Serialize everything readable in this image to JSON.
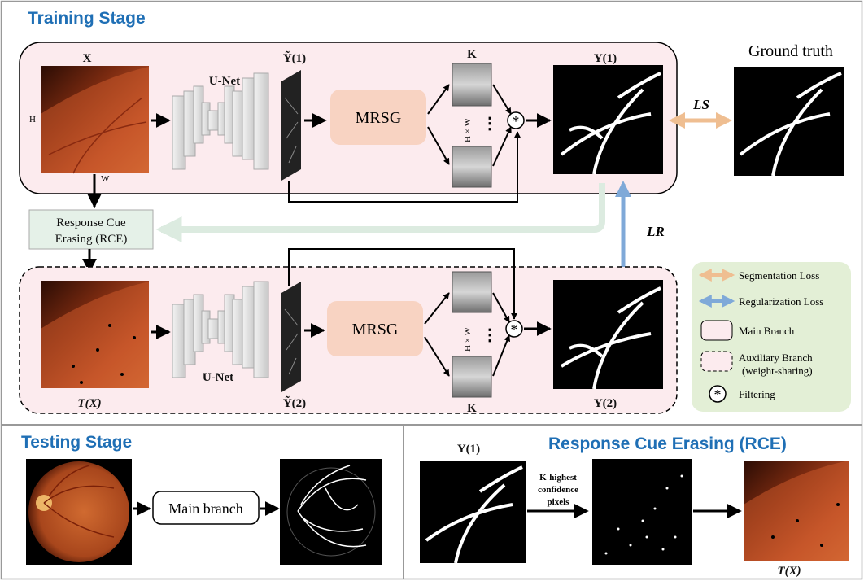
{
  "sections": {
    "training": "Training Stage",
    "testing": "Testing Stage",
    "rce": "Response Cue Erasing (RCE)"
  },
  "main_branch": {
    "input_label": "X",
    "dim_h": "H",
    "dim_w": "W",
    "unet": "U-Net",
    "y_tilde": "Ỹ(1)",
    "mrsg": "MRSG",
    "k": "K",
    "hw": "H × W",
    "dots": "⋮",
    "output": "Y(1)"
  },
  "ground_truth": "Ground truth",
  "loss_s": "LS",
  "loss_r": "LR",
  "rce_box": [
    "Response Cue",
    "Erasing (RCE)"
  ],
  "aux_branch": {
    "input_label": "T(X)",
    "unet": "U-Net",
    "y_tilde": "Ỹ(2)",
    "mrsg": "MRSG",
    "k": "K",
    "hw": "H × W",
    "dots": "⋮",
    "output": "Y(2)"
  },
  "legend": {
    "segmentation_loss": "Segmentation Loss",
    "regularization_loss": "Regularization Loss",
    "main_branch": "Main Branch",
    "aux_branch": [
      "Auxiliary Branch",
      "(weight-sharing)"
    ],
    "filtering": "Filtering"
  },
  "testing": {
    "main_branch": "Main branch"
  },
  "rce_stage": {
    "input": "Y(1)",
    "arrow_text": [
      "K-highest",
      "confidence",
      "pixels"
    ],
    "output": "T(X)"
  },
  "colors": {
    "heading": "#1f6fb5",
    "branch_fill": "#fcebee",
    "mrsg_fill": "#f8d3c2",
    "rce_fill": "#e5f1e8",
    "legend_fill": "#e3efd6",
    "loss_s_arrow": "#efbe91",
    "loss_r_arrow": "#7fa9d8"
  }
}
